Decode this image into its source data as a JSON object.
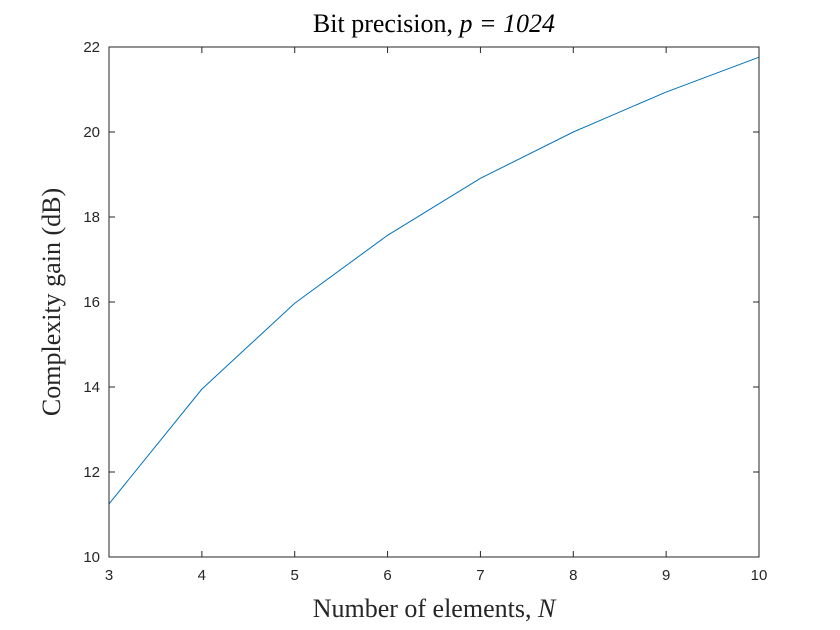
{
  "chart_data": {
    "type": "line",
    "title_text": "Bit precision, ",
    "title_math": "p = 1024",
    "xlabel_text": "Number of elements, ",
    "xlabel_math": "N",
    "ylabel": "Complexity gain (dB)",
    "xlim": [
      3,
      10
    ],
    "ylim": [
      10,
      22
    ],
    "xticks": [
      "3",
      "4",
      "5",
      "6",
      "7",
      "8",
      "9",
      "10"
    ],
    "yticks": [
      "10",
      "12",
      "14",
      "16",
      "18",
      "20",
      "22"
    ],
    "grid": false,
    "series": [
      {
        "color": "#0072BD",
        "x": [
          3,
          4,
          5,
          6,
          7,
          8,
          9,
          10
        ],
        "y": [
          11.25,
          13.95,
          15.97,
          17.57,
          18.91,
          20.0,
          20.94,
          21.76
        ]
      }
    ]
  }
}
